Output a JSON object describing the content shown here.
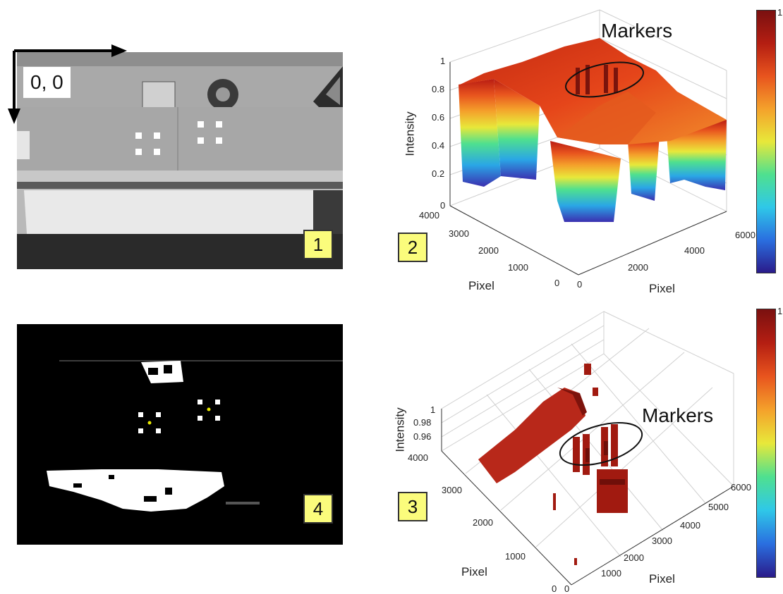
{
  "panels": {
    "p1": {
      "label": "1",
      "origin": "0, 0"
    },
    "p2": {
      "label": "2",
      "markers": "Markers",
      "z_ticks": [
        "1",
        "0.8",
        "0.6",
        "0.4",
        "0.2",
        "0"
      ],
      "z_label": "Intensity",
      "y_ticks": [
        "4000",
        "3000",
        "2000",
        "1000",
        "0"
      ],
      "x_ticks": [
        "0",
        "2000",
        "4000",
        "6000"
      ],
      "y_label": "Pixel",
      "x_label": "Pixel",
      "cbar_top": "1"
    },
    "p3": {
      "label": "3",
      "markers": "Markers",
      "z_ticks": [
        "1",
        "0.98",
        "0.96"
      ],
      "z_label": "Intensity",
      "y_ticks": [
        "4000",
        "3000",
        "2000",
        "1000",
        "0"
      ],
      "x_ticks": [
        "0",
        "1000",
        "2000",
        "3000",
        "4000",
        "5000",
        "6000"
      ],
      "y_label": "Pixel",
      "x_label": "Pixel",
      "cbar_top": "1"
    },
    "p4": {
      "label": "4"
    }
  },
  "colors": {
    "label_bg": "#fbfc7c",
    "jet_high": "#b41e12",
    "jet_low": "#2a1b8a"
  }
}
